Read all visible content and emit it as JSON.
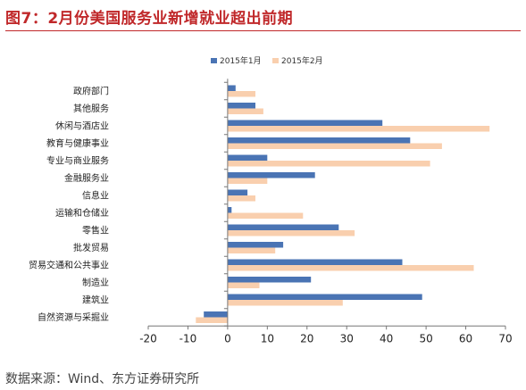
{
  "title": "图7：2月份美国服务业新增就业超出前期",
  "source": "数据来源：Wind、东方证券研究所",
  "colors": {
    "title": "#c0282a",
    "series1": "#4a74b4",
    "series2": "#f9cfae"
  },
  "chart_data": {
    "type": "bar",
    "orientation": "horizontal",
    "title": "",
    "xlabel": "",
    "ylabel": "",
    "xlim": [
      -20,
      70
    ],
    "xticks": [
      -20,
      -10,
      0,
      10,
      20,
      30,
      40,
      50,
      60,
      70
    ],
    "grid": false,
    "legend_position": "top",
    "categories": [
      "政府部门",
      "其他服务",
      "休闲与酒店业",
      "教育与健康事业",
      "专业与商业服务",
      "金融服务业",
      "信息业",
      "运输和仓储业",
      "零售业",
      "批发贸易",
      "贸易交通和公共事业",
      "制造业",
      "建筑业",
      "自然资源与采掘业"
    ],
    "series": [
      {
        "name": "2015年1月",
        "values": [
          2,
          7,
          39,
          46,
          10,
          22,
          5,
          1,
          28,
          14,
          44,
          21,
          49,
          -6
        ]
      },
      {
        "name": "2015年2月",
        "values": [
          7,
          9,
          66,
          54,
          51,
          10,
          7,
          19,
          32,
          12,
          62,
          8,
          29,
          -8
        ]
      }
    ]
  }
}
